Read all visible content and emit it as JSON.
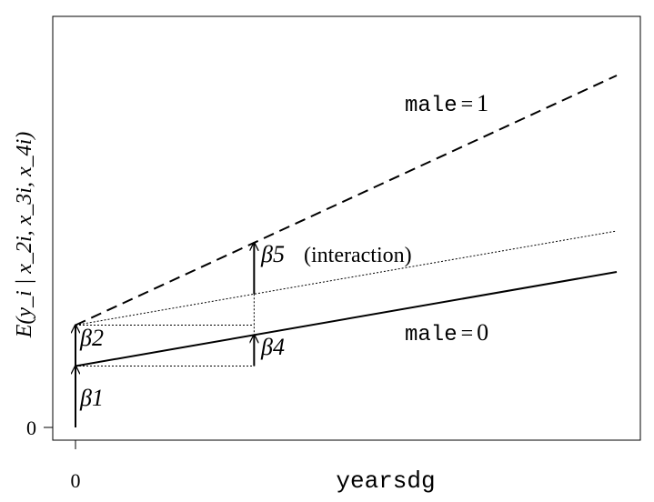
{
  "chart_data": {
    "type": "line",
    "ylabel": "E(y_i | x_2i, x_3i, x_4i)",
    "xlabel": "yearsdg",
    "x_ticks": [
      "0"
    ],
    "y_ticks": [
      "0"
    ],
    "xlim": [
      0,
      10
    ],
    "ylim": [
      0,
      10
    ],
    "series": [
      {
        "name": "male = 0",
        "style": "solid",
        "points": [
          [
            0,
            1.5
          ],
          [
            10,
            3.8
          ]
        ]
      },
      {
        "name": "male = 1",
        "style": "dashed",
        "points": [
          [
            0,
            2.5
          ],
          [
            10,
            8.6
          ]
        ]
      },
      {
        "name": "",
        "style": "dotted",
        "points": [
          [
            0,
            2.5
          ],
          [
            10,
            4.8
          ]
        ]
      }
    ],
    "annotations": [
      {
        "label": "β1",
        "kind": "arrow",
        "x": 0,
        "y_from": 0,
        "y_to": 1.5
      },
      {
        "label": "β2",
        "kind": "arrow",
        "x": 0,
        "y_from": 1.5,
        "y_to": 2.5
      },
      {
        "label": "β4",
        "kind": "arrow",
        "x": 3.3,
        "y_from": 1.5,
        "y_to": 2.26
      },
      {
        "label": "β5",
        "suffix": "(interaction)",
        "kind": "arrow",
        "x": 3.3,
        "y_from": 3.26,
        "y_to": 4.51
      }
    ],
    "line_labels": [
      {
        "var": "male",
        "eq": "=",
        "val": "1"
      },
      {
        "var": "male",
        "eq": "=",
        "val": "0"
      }
    ]
  }
}
